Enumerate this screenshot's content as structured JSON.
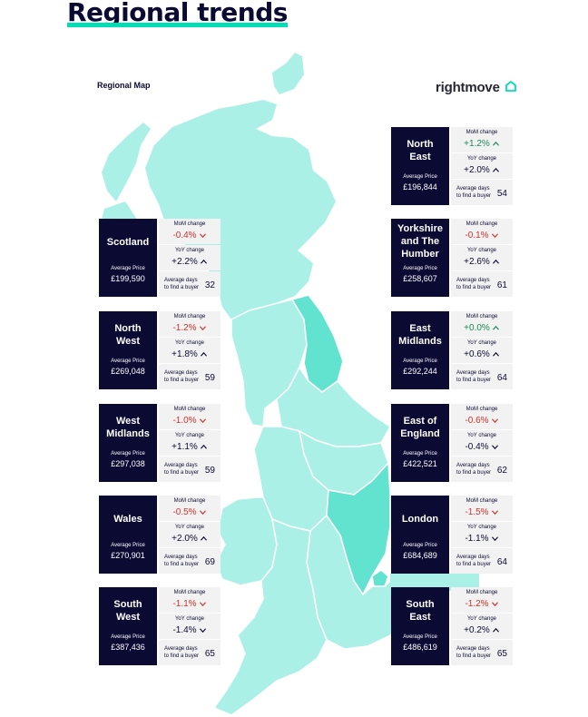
{
  "page_title": "Regional trends",
  "map_label": "Regional Map",
  "brand": "rightmove",
  "colors": {
    "navy": "#0b0a33",
    "accent": "#00deb6",
    "map_light": "#aaf0e6",
    "map_mid": "#62e3d0",
    "increase": "#1c8a5e",
    "decrease": "#d5312a"
  },
  "labels": {
    "mom": "MoM change",
    "yoy": "YoY change",
    "avg_price": "Average Price",
    "days_line1": "Average days",
    "days_line2": "to find a buyer"
  },
  "regions": [
    {
      "name": "Scotland",
      "price": "£199,590",
      "mom": "-0.4%",
      "mom_dir": "down",
      "mom_color": "red",
      "yoy": "+2.2%",
      "yoy_dir": "up",
      "yoy_color": "navy",
      "days": "32"
    },
    {
      "name": "North West",
      "price": "£269,048",
      "mom": "-1.2%",
      "mom_dir": "down",
      "mom_color": "red",
      "yoy": "+1.8%",
      "yoy_dir": "up",
      "yoy_color": "navy",
      "days": "59"
    },
    {
      "name": "West Midlands",
      "price": "£297,038",
      "mom": "-1.0%",
      "mom_dir": "down",
      "mom_color": "red",
      "yoy": "+1.1%",
      "yoy_dir": "up",
      "yoy_color": "navy",
      "days": "59"
    },
    {
      "name": "Wales",
      "price": "£270,901",
      "mom": "-0.5%",
      "mom_dir": "down",
      "mom_color": "red",
      "yoy": "+2.0%",
      "yoy_dir": "up",
      "yoy_color": "navy",
      "days": "69"
    },
    {
      "name": "South West",
      "price": "£387,436",
      "mom": "-1.1%",
      "mom_dir": "down",
      "mom_color": "red",
      "yoy": "-1.4%",
      "yoy_dir": "down",
      "yoy_color": "navy",
      "days": "65"
    },
    {
      "name": "North East",
      "price": "£196,844",
      "mom": "+1.2%",
      "mom_dir": "up",
      "mom_color": "green",
      "yoy": "+2.0%",
      "yoy_dir": "up",
      "yoy_color": "navy",
      "days": "54"
    },
    {
      "name": "Yorkshire and The Humber",
      "price": "£258,607",
      "mom": "-0.1%",
      "mom_dir": "down",
      "mom_color": "red",
      "yoy": "+2.6%",
      "yoy_dir": "up",
      "yoy_color": "navy",
      "days": "61"
    },
    {
      "name": "East Midlands",
      "price": "£292,244",
      "mom": "+0.0%",
      "mom_dir": "up",
      "mom_color": "green",
      "yoy": "+0.6%",
      "yoy_dir": "up",
      "yoy_color": "navy",
      "days": "64"
    },
    {
      "name": "East of England",
      "price": "£422,521",
      "mom": "-0.6%",
      "mom_dir": "down",
      "mom_color": "red",
      "yoy": "-0.4%",
      "yoy_dir": "down",
      "yoy_color": "navy",
      "days": "62"
    },
    {
      "name": "London",
      "price": "£684,689",
      "mom": "-1.5%",
      "mom_dir": "down",
      "mom_color": "red",
      "yoy": "-1.1%",
      "yoy_dir": "down",
      "yoy_color": "navy",
      "days": "64"
    },
    {
      "name": "South East",
      "price": "£486,619",
      "mom": "-1.2%",
      "mom_dir": "down",
      "mom_color": "red",
      "yoy": "+0.2%",
      "yoy_dir": "up",
      "yoy_color": "navy",
      "days": "65"
    }
  ]
}
